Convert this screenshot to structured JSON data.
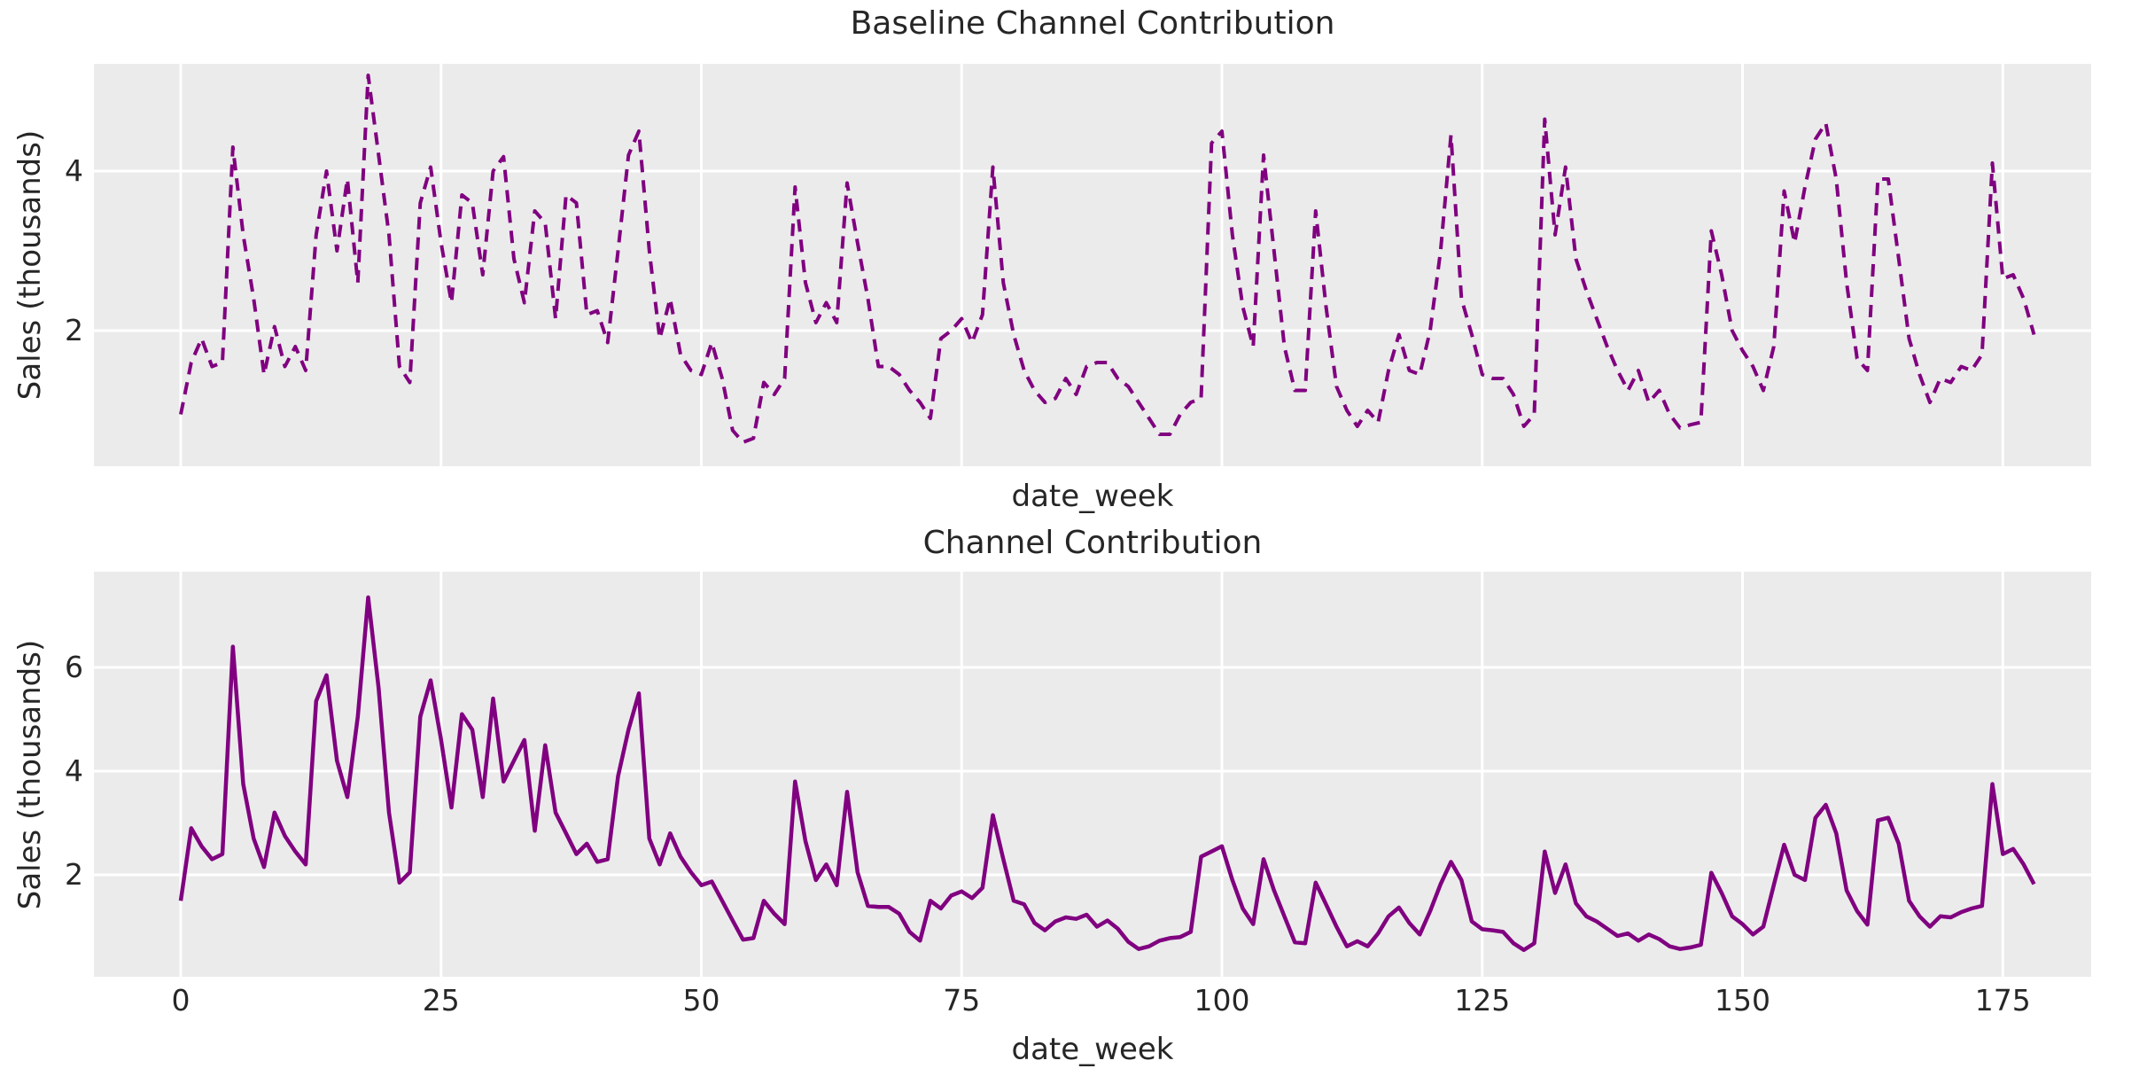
{
  "figure": {
    "background": "#ffffff",
    "plot_background": "#ebebeb",
    "grid_color": "#ffffff",
    "text_color": "#262626",
    "line_color": "#800080"
  },
  "chart_data": [
    {
      "type": "line",
      "title": "Baseline Channel Contribution",
      "xlabel": "date_week",
      "ylabel": "Sales (thousands)",
      "legend": "none",
      "grid": true,
      "line_style": "dashed",
      "color": "#800080",
      "x_description": "week index 0-178",
      "x_ticks": [
        0,
        25,
        50,
        75,
        100,
        125,
        150,
        175
      ],
      "show_x_tick_labels": false,
      "y_ticks": [
        2,
        4
      ],
      "ylim": [
        0.3,
        5.35
      ],
      "xlim": [
        -8.3,
        183.9
      ],
      "values": [
        0.95,
        1.6,
        1.9,
        1.55,
        1.6,
        4.3,
        3.2,
        2.4,
        1.45,
        2.05,
        1.55,
        1.8,
        1.5,
        3.2,
        4.0,
        3.0,
        3.9,
        2.6,
        5.2,
        4.2,
        3.2,
        1.55,
        1.35,
        3.6,
        4.05,
        3.1,
        2.35,
        3.7,
        3.6,
        2.7,
        4.0,
        4.18,
        2.9,
        2.35,
        3.5,
        3.35,
        2.15,
        3.7,
        3.6,
        2.2,
        2.25,
        1.85,
        3.0,
        4.2,
        4.5,
        3.0,
        1.9,
        2.4,
        1.7,
        1.5,
        1.45,
        1.85,
        1.4,
        0.75,
        0.6,
        0.65,
        1.35,
        1.2,
        1.4,
        3.8,
        2.6,
        2.1,
        2.35,
        2.1,
        3.85,
        3.1,
        2.4,
        1.55,
        1.55,
        1.45,
        1.25,
        1.1,
        0.9,
        1.9,
        2.0,
        2.15,
        1.85,
        2.2,
        4.05,
        2.6,
        1.95,
        1.5,
        1.25,
        1.1,
        1.15,
        1.4,
        1.2,
        1.55,
        1.6,
        1.6,
        1.4,
        1.3,
        1.1,
        0.9,
        0.7,
        0.7,
        0.95,
        1.1,
        1.15,
        4.35,
        4.5,
        3.2,
        2.3,
        1.8,
        4.2,
        3.0,
        1.8,
        1.25,
        1.25,
        3.5,
        2.3,
        1.3,
        1.0,
        0.8,
        1.0,
        0.85,
        1.5,
        1.95,
        1.5,
        1.45,
        2.0,
        3.0,
        4.45,
        2.4,
        1.95,
        1.45,
        1.4,
        1.4,
        1.2,
        0.8,
        0.95,
        4.65,
        3.2,
        4.05,
        2.9,
        2.5,
        2.15,
        1.8,
        1.5,
        1.25,
        1.5,
        1.1,
        1.25,
        0.95,
        0.78,
        0.82,
        0.85,
        3.25,
        2.7,
        2.0,
        1.75,
        1.55,
        1.25,
        1.8,
        3.75,
        3.1,
        3.8,
        4.4,
        4.6,
        3.9,
        2.6,
        1.65,
        1.5,
        3.9,
        3.9,
        2.9,
        1.9,
        1.45,
        1.1,
        1.4,
        1.35,
        1.55,
        1.5,
        1.7,
        4.1,
        2.65,
        2.7,
        2.4,
        1.95
      ]
    },
    {
      "type": "line",
      "title": "Channel Contribution",
      "xlabel": "date_week",
      "ylabel": "Sales (thousands)",
      "legend": "none",
      "grid": true,
      "line_style": "solid",
      "color": "#800080",
      "x_description": "week index 0-178",
      "x_ticks": [
        0,
        25,
        50,
        75,
        100,
        125,
        150,
        175
      ],
      "show_x_tick_labels": true,
      "y_ticks": [
        2,
        4,
        6
      ],
      "ylim": [
        0.03,
        7.85
      ],
      "xlim": [
        -8.3,
        183.9
      ],
      "values": [
        1.5,
        2.9,
        2.55,
        2.3,
        2.4,
        6.4,
        3.75,
        2.7,
        2.15,
        3.2,
        2.75,
        2.45,
        2.2,
        5.35,
        5.85,
        4.2,
        3.5,
        5.05,
        7.35,
        5.6,
        3.2,
        1.85,
        2.05,
        5.05,
        5.75,
        4.6,
        3.3,
        5.1,
        4.8,
        3.5,
        5.4,
        3.8,
        4.2,
        4.6,
        2.85,
        4.5,
        3.2,
        2.8,
        2.4,
        2.6,
        2.25,
        2.3,
        3.9,
        4.8,
        5.5,
        2.7,
        2.2,
        2.8,
        2.35,
        2.05,
        1.8,
        1.87,
        1.5,
        1.12,
        0.75,
        0.78,
        1.5,
        1.25,
        1.05,
        3.8,
        2.65,
        1.9,
        2.2,
        1.8,
        3.6,
        2.05,
        1.4,
        1.38,
        1.38,
        1.25,
        0.9,
        0.73,
        1.5,
        1.35,
        1.6,
        1.68,
        1.55,
        1.75,
        3.15,
        2.3,
        1.5,
        1.43,
        1.07,
        0.93,
        1.1,
        1.18,
        1.15,
        1.23,
        1.0,
        1.12,
        0.96,
        0.71,
        0.57,
        0.62,
        0.73,
        0.78,
        0.8,
        0.9,
        2.35,
        2.45,
        2.55,
        1.9,
        1.35,
        1.05,
        2.3,
        1.7,
        1.2,
        0.7,
        0.68,
        1.85,
        1.43,
        1.0,
        0.62,
        0.72,
        0.62,
        0.87,
        1.2,
        1.37,
        1.07,
        0.85,
        1.3,
        1.82,
        2.25,
        1.9,
        1.1,
        0.95,
        0.93,
        0.9,
        0.68,
        0.55,
        0.68,
        2.45,
        1.65,
        2.2,
        1.45,
        1.2,
        1.1,
        0.96,
        0.82,
        0.87,
        0.73,
        0.85,
        0.76,
        0.62,
        0.57,
        0.6,
        0.65,
        2.04,
        1.65,
        1.2,
        1.05,
        0.85,
        1.0,
        1.8,
        2.58,
        2.0,
        1.9,
        3.1,
        3.35,
        2.8,
        1.7,
        1.3,
        1.04,
        3.05,
        3.1,
        2.6,
        1.5,
        1.2,
        1.0,
        1.2,
        1.18,
        1.28,
        1.35,
        1.4,
        3.75,
        2.4,
        2.5,
        2.2,
        1.82
      ]
    }
  ]
}
